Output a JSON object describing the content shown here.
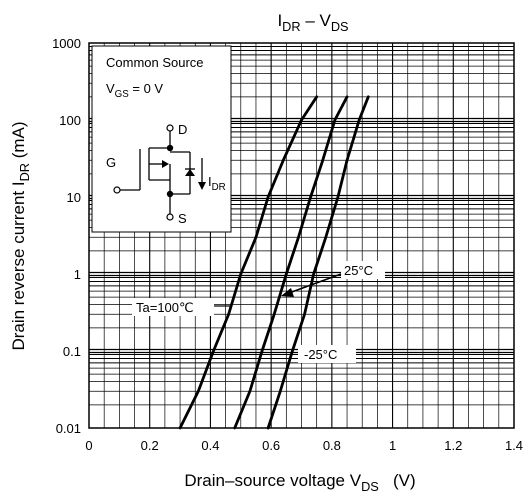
{
  "chart_data": {
    "type": "line",
    "title": {
      "main": "I",
      "main_sub": "DR",
      "sep": " – V",
      "end_sub": "DS"
    },
    "xlabel": {
      "main": "Drain–source voltage   V",
      "sub": "DS",
      "unit": "   (V)"
    },
    "ylabel": {
      "main": "Drain reverse current   I",
      "sub": "DR",
      "unit": "   (mA)"
    },
    "x_scale": "linear",
    "y_scale": "log",
    "xlim": [
      0,
      1.4
    ],
    "ylim": [
      0.01,
      1000
    ],
    "grid": true,
    "x_ticks": [
      "0",
      "0.2",
      "0.4",
      "0.6",
      "0.8",
      "1",
      "1.2",
      "1.4"
    ],
    "y_ticks": [
      "0.01",
      "0.1",
      "1",
      "10",
      "100",
      "1000"
    ],
    "conditions": {
      "line1": "Common Source",
      "line2_main": "V",
      "line2_sub": "GS",
      "line2_end": " = 0 V"
    },
    "circuit": {
      "drain": "D",
      "gate": "G",
      "source": "S",
      "current_main": "I",
      "current_sub": "DR"
    },
    "series": [
      {
        "name": "Ta=100℃",
        "x": [
          0.3,
          0.36,
          0.41,
          0.46,
          0.5,
          0.55,
          0.59,
          0.64,
          0.7,
          0.75
        ],
        "y": [
          0.01,
          0.03,
          0.1,
          0.3,
          1,
          3,
          10,
          30,
          100,
          200
        ]
      },
      {
        "name": "25°C",
        "x": [
          0.48,
          0.53,
          0.57,
          0.61,
          0.65,
          0.69,
          0.73,
          0.77,
          0.81,
          0.85
        ],
        "y": [
          0.01,
          0.03,
          0.1,
          0.3,
          1,
          3,
          10,
          30,
          100,
          200
        ]
      },
      {
        "name": "-25°C",
        "x": [
          0.59,
          0.63,
          0.67,
          0.71,
          0.74,
          0.78,
          0.82,
          0.85,
          0.89,
          0.92
        ],
        "y": [
          0.01,
          0.03,
          0.1,
          0.3,
          1,
          3,
          10,
          30,
          100,
          200
        ]
      }
    ],
    "line_color": "#000000"
  }
}
